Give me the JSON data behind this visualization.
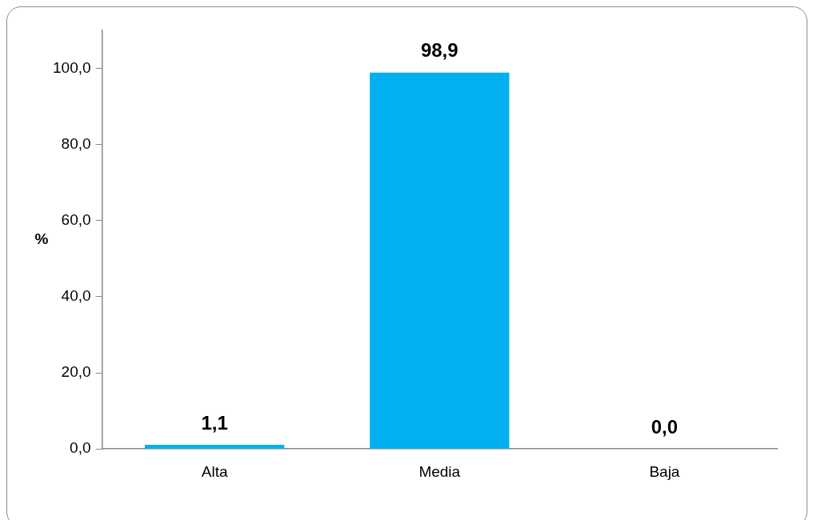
{
  "chart_data": {
    "type": "bar",
    "ylabel": "%",
    "categories": [
      "Alta",
      "Media",
      "Baja"
    ],
    "values": [
      1.1,
      98.9,
      0.0
    ],
    "value_labels": [
      "1,1",
      "98,9",
      "0,0"
    ],
    "color": "#00b0f0",
    "ylim": [
      0,
      110
    ],
    "yticks": [
      {
        "value": 0,
        "label": "0,0"
      },
      {
        "value": 20,
        "label": "20,0"
      },
      {
        "value": 40,
        "label": "40,0"
      },
      {
        "value": 60,
        "label": "60,0"
      },
      {
        "value": 80,
        "label": "80,0"
      },
      {
        "value": 100,
        "label": "100,0"
      }
    ],
    "grid": false,
    "legend": false
  }
}
